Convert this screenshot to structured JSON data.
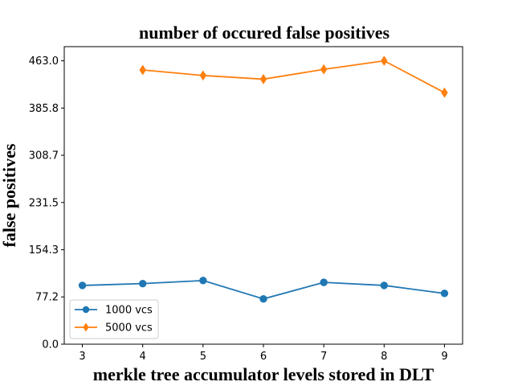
{
  "chart_data": {
    "type": "line",
    "title": "number of occured false positives",
    "xlabel": "merkle tree accumulator levels stored in DLT",
    "ylabel": "false positives",
    "x_ticks": [
      "3",
      "4",
      "5",
      "6",
      "7",
      "8",
      "9"
    ],
    "y_ticks": [
      "0.0",
      "77.2",
      "154.3",
      "231.5",
      "308.7",
      "385.8",
      "463.0"
    ],
    "y_tick_values": [
      0.0,
      77.2,
      154.3,
      231.5,
      308.7,
      385.8,
      463.0
    ],
    "xlim": [
      2.7,
      9.3
    ],
    "ylim": [
      0,
      463.0
    ],
    "legend_position": "lower-left",
    "grid": false,
    "series": [
      {
        "name": "1000 vcs",
        "color": "#1f77b4",
        "marker": "circle",
        "x": [
          3,
          4,
          5,
          6,
          7,
          8,
          9
        ],
        "y": [
          96,
          99,
          104,
          74,
          101,
          96,
          83
        ]
      },
      {
        "name": "5000 vcs",
        "color": "#ff7f0e",
        "marker": "diamond",
        "x": [
          4,
          5,
          6,
          7,
          8,
          9
        ],
        "y": [
          448,
          439,
          433,
          449,
          463,
          411
        ]
      }
    ]
  }
}
